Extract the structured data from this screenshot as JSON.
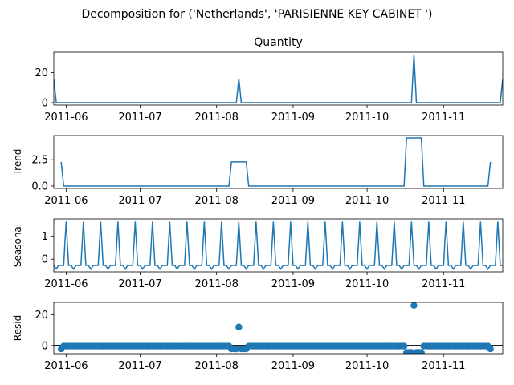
{
  "suptitle": "Decomposition for ('Netherlands', 'PARISIENNE KEY CABINET ')",
  "colors": {
    "series": "#1f77b4",
    "axis": "#000000",
    "background": "#ffffff"
  },
  "chart_data": [
    {
      "type": "line",
      "title": "Quantity",
      "ylabel": "",
      "xlabel": "",
      "x_range": [
        "2011-05-27",
        "2011-11-25"
      ],
      "ylim": [
        -1.6,
        33.6
      ],
      "yticks": [
        0,
        20
      ],
      "xticks": [
        "2011-06",
        "2011-07",
        "2011-08",
        "2011-09",
        "2011-10",
        "2011-11"
      ],
      "x_tick_dates": [
        "2011-06-01",
        "2011-07-01",
        "2011-08-01",
        "2011-09-01",
        "2011-10-01",
        "2011-11-01"
      ],
      "series": [
        {
          "points": [
            [
              "2011-05-27",
              16
            ],
            [
              "2011-05-28",
              0
            ],
            [
              "2011-08-09",
              0
            ],
            [
              "2011-08-10",
              16
            ],
            [
              "2011-08-11",
              0
            ],
            [
              "2011-10-19",
              0
            ],
            [
              "2011-10-20",
              32
            ],
            [
              "2011-10-21",
              0
            ],
            [
              "2011-11-24",
              0
            ],
            [
              "2011-11-25",
              16
            ]
          ]
        }
      ]
    },
    {
      "type": "line",
      "title": "",
      "ylabel": "Trend",
      "xlabel": "",
      "x_range": [
        "2011-05-27",
        "2011-11-25"
      ],
      "ylim": [
        -0.23,
        4.8
      ],
      "yticks": [
        0.0,
        2.5
      ],
      "ytick_labels": [
        "0.0",
        "2.5"
      ],
      "xticks": [
        "2011-06",
        "2011-07",
        "2011-08",
        "2011-09",
        "2011-10",
        "2011-11"
      ],
      "x_tick_dates": [
        "2011-06-01",
        "2011-07-01",
        "2011-08-01",
        "2011-09-01",
        "2011-10-01",
        "2011-11-01"
      ],
      "series": [
        {
          "points": [
            [
              "2011-05-30",
              2.29
            ],
            [
              "2011-05-31",
              0
            ],
            [
              "2011-08-06",
              0
            ],
            [
              "2011-08-07",
              2.29
            ],
            [
              "2011-08-13",
              2.29
            ],
            [
              "2011-08-14",
              0
            ],
            [
              "2011-10-16",
              0
            ],
            [
              "2011-10-17",
              4.57
            ],
            [
              "2011-10-23",
              4.57
            ],
            [
              "2011-10-24",
              0
            ],
            [
              "2011-11-19",
              0
            ],
            [
              "2011-11-20",
              2.29
            ]
          ]
        }
      ]
    },
    {
      "type": "line",
      "title": "",
      "ylabel": "Seasonal",
      "xlabel": "",
      "x_range": [
        "2011-05-27",
        "2011-11-25"
      ],
      "ylim": [
        -0.55,
        1.75
      ],
      "yticks": [
        0,
        1
      ],
      "xticks": [
        "2011-06",
        "2011-07",
        "2011-08",
        "2011-09",
        "2011-10",
        "2011-11"
      ],
      "x_tick_dates": [
        "2011-06-01",
        "2011-07-01",
        "2011-08-01",
        "2011-09-01",
        "2011-10-01",
        "2011-11-01"
      ],
      "period_days": 7,
      "first_peak": "2011-06-01",
      "weekly_pattern": [
        1.63,
        -0.27,
        -0.27,
        -0.43,
        -0.27,
        -0.27,
        -0.27
      ],
      "peak_value": 1.63,
      "low_value": -0.43,
      "base_value": -0.27
    },
    {
      "type": "scatter",
      "title": "",
      "ylabel": "Resid",
      "xlabel": "",
      "x_range": [
        "2011-05-27",
        "2011-11-25"
      ],
      "ylim": [
        -5.3,
        28.0
      ],
      "yticks": [
        0,
        20
      ],
      "xticks": [
        "2011-06",
        "2011-07",
        "2011-08",
        "2011-09",
        "2011-10",
        "2011-11"
      ],
      "x_tick_dates": [
        "2011-06-01",
        "2011-07-01",
        "2011-08-01",
        "2011-09-01",
        "2011-10-01",
        "2011-11-01"
      ],
      "baseline": 0,
      "range_start": "2011-05-30",
      "range_end": "2011-11-20",
      "default_value": -0.4,
      "deviations": [
        {
          "date": "2011-05-30",
          "value": -2.2
        },
        {
          "date": "2011-08-07",
          "value": -2.2
        },
        {
          "date": "2011-08-08",
          "value": -2.2
        },
        {
          "date": "2011-08-09",
          "value": -2.2
        },
        {
          "date": "2011-08-10",
          "value": 12
        },
        {
          "date": "2011-08-11",
          "value": -2.2
        },
        {
          "date": "2011-08-12",
          "value": -2.2
        },
        {
          "date": "2011-08-13",
          "value": -2.2
        },
        {
          "date": "2011-10-17",
          "value": -4.5
        },
        {
          "date": "2011-10-18",
          "value": -4.5
        },
        {
          "date": "2011-10-19",
          "value": -4.5
        },
        {
          "date": "2011-10-20",
          "value": 26
        },
        {
          "date": "2011-10-21",
          "value": -4.5
        },
        {
          "date": "2011-10-22",
          "value": -4.5
        },
        {
          "date": "2011-10-23",
          "value": -4.5
        },
        {
          "date": "2011-11-20",
          "value": -2.2
        }
      ]
    }
  ]
}
